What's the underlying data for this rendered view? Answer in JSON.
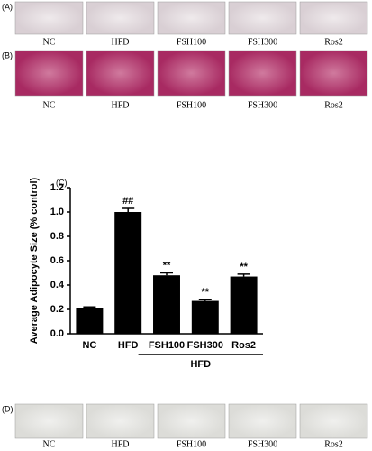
{
  "panels": [
    {
      "label": "(A)",
      "captions": [
        "NC",
        "HFD",
        "FSH100",
        "FSH300",
        "Ros2"
      ]
    },
    {
      "label": "(B)",
      "captions": [
        "NC",
        "HFD",
        "FSH100",
        "FSH300",
        "Ros2"
      ]
    },
    {
      "label": "(D)",
      "captions": [
        "NC",
        "HFD",
        "FSH100",
        "FSH300",
        "Ros2"
      ]
    }
  ],
  "chart_data": {
    "type": "bar",
    "panel_label": "(C)",
    "ylabel": "Average Adipocyte Size (% control)",
    "categories": [
      "NC",
      "HFD",
      "FSH100",
      "FSH300",
      "Ros2"
    ],
    "values": [
      0.21,
      1.0,
      0.48,
      0.27,
      0.47
    ],
    "errors": [
      0.01,
      0.03,
      0.02,
      0.01,
      0.02
    ],
    "significance": [
      null,
      "##",
      "**",
      "**",
      "**"
    ],
    "group_label": "HFD",
    "color": "#000000",
    "ylim": [
      0,
      1.2
    ],
    "yticks": [
      {
        "value": 0,
        "label": "0.0"
      },
      {
        "value": 0.2,
        "label": "0.2"
      },
      {
        "value": 0.4,
        "label": "0.4"
      },
      {
        "value": 0.6,
        "label": "0.6"
      },
      {
        "value": 0.8,
        "label": "0.8"
      },
      {
        "value": 1.0,
        "label": "1.0"
      },
      {
        "value": 1.2,
        "label": "1.2"
      }
    ]
  }
}
